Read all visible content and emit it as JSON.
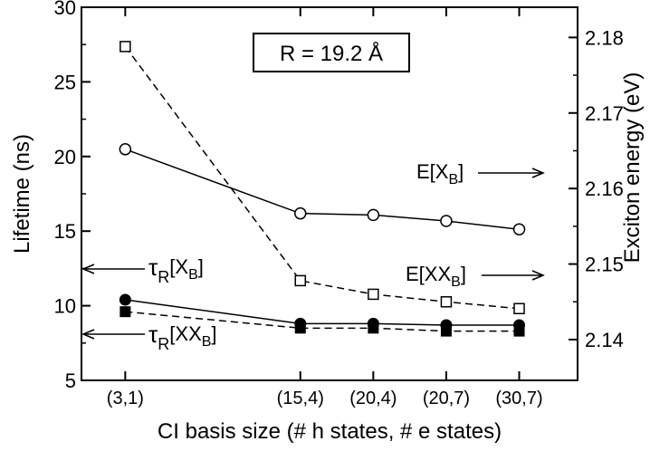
{
  "chart_data": {
    "type": "line",
    "title": "",
    "annotation_box": "R = 19.2 Å",
    "xlabel": "CI basis size (# h states, # e states)",
    "ylabel_left": "Lifetime (ns)",
    "ylabel_right": "Exciton energy (eV)",
    "categories": [
      "(3,1)",
      "(15,4)",
      "(20,4)",
      "(20,7)",
      "(30,7)"
    ],
    "x_positions": [
      3,
      15,
      20,
      25,
      30
    ],
    "xlim": [
      0,
      34
    ],
    "ylim_left": [
      5,
      30
    ],
    "ylim_right": [
      2.1346,
      2.184
    ],
    "yticks_left": [
      5,
      10,
      15,
      20,
      25,
      30
    ],
    "yticks_right": [
      2.14,
      2.15,
      2.16,
      2.17,
      2.18
    ],
    "series": [
      {
        "label_base": "E[X",
        "label_sub": "B",
        "label_tail": "]",
        "axis": "right",
        "marker": "open-circle",
        "dash": false,
        "values": [
          2.1652,
          2.1567,
          2.1565,
          2.1557,
          2.1546
        ]
      },
      {
        "label_base": "E[XX",
        "label_sub": "B",
        "label_tail": "]",
        "axis": "right",
        "marker": "open-square",
        "dash": true,
        "values": [
          2.1788,
          2.1478,
          2.146,
          2.145,
          2.1441
        ]
      },
      {
        "label_base": "τ",
        "label_sub": "R",
        "label_tail": "[X",
        "label_sub2": "B",
        "label_end": "]",
        "axis": "left",
        "marker": "filled-circle",
        "dash": false,
        "values": [
          10.4,
          8.8,
          8.8,
          8.7,
          8.7
        ]
      },
      {
        "label_base": "τ",
        "label_sub": "R",
        "label_tail": "[XX",
        "label_sub2": "B",
        "label_end": "]",
        "axis": "left",
        "marker": "filled-square",
        "dash": true,
        "values": [
          9.6,
          8.5,
          8.5,
          8.3,
          8.3
        ]
      }
    ]
  }
}
